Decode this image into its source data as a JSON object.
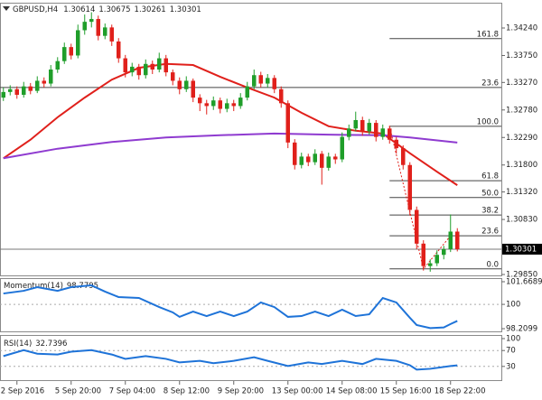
{
  "chart_data": [
    {
      "type": "candlestick",
      "title": "GBPUSD,H4",
      "ohlc": [
        [
          1.33,
          1.3318,
          1.3294,
          1.331
        ],
        [
          1.331,
          1.3322,
          1.3304,
          1.3315
        ],
        [
          1.3315,
          1.332,
          1.3298,
          1.3305
        ],
        [
          1.3305,
          1.3328,
          1.33,
          1.332
        ],
        [
          1.332,
          1.3326,
          1.3306,
          1.3312
        ],
        [
          1.3312,
          1.3338,
          1.3308,
          1.333
        ],
        [
          1.333,
          1.3336,
          1.3318,
          1.3325
        ],
        [
          1.3325,
          1.3358,
          1.332,
          1.335
        ],
        [
          1.335,
          1.3372,
          1.3344,
          1.3365
        ],
        [
          1.3365,
          1.3398,
          1.336,
          1.339
        ],
        [
          1.339,
          1.3396,
          1.3368,
          1.3375
        ],
        [
          1.3375,
          1.343,
          1.337,
          1.342
        ],
        [
          1.342,
          1.3448,
          1.3412,
          1.3435
        ],
        [
          1.3435,
          1.3452,
          1.3425,
          1.344
        ],
        [
          1.344,
          1.3446,
          1.3402,
          1.341
        ],
        [
          1.341,
          1.3432,
          1.3404,
          1.3425
        ],
        [
          1.3425,
          1.343,
          1.3392,
          1.34
        ],
        [
          1.34,
          1.3406,
          1.3362,
          1.337
        ],
        [
          1.337,
          1.3376,
          1.3336,
          1.3345
        ],
        [
          1.3345,
          1.3362,
          1.3338,
          1.3355
        ],
        [
          1.3355,
          1.336,
          1.3332,
          1.334
        ],
        [
          1.334,
          1.3368,
          1.3334,
          1.336
        ],
        [
          1.336,
          1.3366,
          1.3342,
          1.335
        ],
        [
          1.335,
          1.338,
          1.3345,
          1.337
        ],
        [
          1.337,
          1.3376,
          1.3338,
          1.3345
        ],
        [
          1.3345,
          1.335,
          1.3322,
          1.333
        ],
        [
          1.333,
          1.3336,
          1.3306,
          1.3315
        ],
        [
          1.3315,
          1.3338,
          1.331,
          1.333
        ],
        [
          1.333,
          1.3334,
          1.3292,
          1.33
        ],
        [
          1.33,
          1.3306,
          1.3276,
          1.329
        ],
        [
          1.329,
          1.3296,
          1.327,
          1.3285
        ],
        [
          1.3285,
          1.3302,
          1.3278,
          1.3295
        ],
        [
          1.3295,
          1.33,
          1.3272,
          1.328
        ],
        [
          1.328,
          1.3298,
          1.3274,
          1.329
        ],
        [
          1.329,
          1.3296,
          1.3276,
          1.3285
        ],
        [
          1.3285,
          1.3308,
          1.328,
          1.33
        ],
        [
          1.33,
          1.3328,
          1.3295,
          1.332
        ],
        [
          1.332,
          1.335,
          1.3315,
          1.334
        ],
        [
          1.334,
          1.3346,
          1.3318,
          1.3325
        ],
        [
          1.3325,
          1.3342,
          1.3318,
          1.3335
        ],
        [
          1.3335,
          1.334,
          1.3308,
          1.3315
        ],
        [
          1.3315,
          1.332,
          1.3282,
          1.329
        ],
        [
          1.329,
          1.3295,
          1.321,
          1.322
        ],
        [
          1.322,
          1.3226,
          1.3172,
          1.318
        ],
        [
          1.318,
          1.3202,
          1.3174,
          1.3195
        ],
        [
          1.3195,
          1.32,
          1.3178,
          1.3185
        ],
        [
          1.3185,
          1.3208,
          1.318,
          1.32
        ],
        [
          1.32,
          1.3205,
          1.3145,
          1.3175
        ],
        [
          1.3175,
          1.3202,
          1.317,
          1.3195
        ],
        [
          1.3195,
          1.32,
          1.3182,
          1.319
        ],
        [
          1.319,
          1.3238,
          1.3185,
          1.323
        ],
        [
          1.323,
          1.3252,
          1.3224,
          1.3245
        ],
        [
          1.3245,
          1.3275,
          1.324,
          1.326
        ],
        [
          1.326,
          1.3266,
          1.3232,
          1.324
        ],
        [
          1.324,
          1.3262,
          1.3234,
          1.3255
        ],
        [
          1.3255,
          1.326,
          1.3222,
          1.323
        ],
        [
          1.323,
          1.3252,
          1.3225,
          1.3245
        ],
        [
          1.3245,
          1.325,
          1.3218,
          1.3225
        ],
        [
          1.3225,
          1.323,
          1.32,
          1.321
        ],
        [
          1.321,
          1.3215,
          1.3172,
          1.318
        ],
        [
          1.318,
          1.3185,
          1.309,
          1.31
        ],
        [
          1.31,
          1.3106,
          1.303,
          1.304
        ],
        [
          1.304,
          1.3046,
          1.2992,
          1.3
        ],
        [
          1.3,
          1.3012,
          1.299,
          1.3005
        ],
        [
          1.3005,
          1.3028,
          1.3,
          1.302
        ],
        [
          1.302,
          1.3036,
          1.3012,
          1.303
        ],
        [
          1.303,
          1.3092,
          1.3025,
          1.30614
        ],
        [
          1.30614,
          1.30675,
          1.30261,
          1.30301
        ]
      ],
      "up_color": "#1f9e2a",
      "down_color": "#e0201b",
      "xlim": [
        -0.5,
        73.5
      ],
      "xticks": [
        {
          "value": 2,
          "label": "2 Sep 2016"
        },
        {
          "value": 10,
          "label": "5 Sep 20:00"
        },
        {
          "value": 18,
          "label": "7 Sep 04:00"
        },
        {
          "value": 26,
          "label": "8 Sep 12:00"
        },
        {
          "value": 34,
          "label": "9 Sep 20:00"
        },
        {
          "value": 42,
          "label": "13 Sep 00:00"
        },
        {
          "value": 50,
          "label": "14 Sep 08:00"
        },
        {
          "value": 58,
          "label": "15 Sep 16:00"
        },
        {
          "value": 66,
          "label": "18 Sep 22:00"
        }
      ],
      "ylim": [
        1.29834,
        1.34674
      ],
      "yticks": [
        {
          "value": 1.3424,
          "label": "1.34240"
        },
        {
          "value": 1.3375,
          "label": "1.33750"
        },
        {
          "value": 1.3327,
          "label": "1.33270"
        },
        {
          "value": 1.3278,
          "label": "1.32780"
        },
        {
          "value": 1.3229,
          "label": "1.32290"
        },
        {
          "value": 1.318,
          "label": "1.31800"
        },
        {
          "value": 1.3132,
          "label": "1.31320"
        },
        {
          "value": 1.3083,
          "label": "1.30830"
        },
        {
          "value": 1.2985,
          "label": "1.29850"
        }
      ],
      "grid": false,
      "lines": [
        {
          "color": "#e0201b",
          "x": [
            0,
            4,
            8,
            12,
            16,
            20,
            24,
            28,
            32,
            36,
            40,
            44,
            48,
            52,
            56,
            60,
            64,
            67
          ],
          "values": [
            1.3192,
            1.3225,
            1.3265,
            1.33,
            1.3332,
            1.3353,
            1.336,
            1.3358,
            1.3337,
            1.3318,
            1.33,
            1.3273,
            1.3249,
            1.3241,
            1.3236,
            1.3201,
            1.3168,
            1.3144
          ]
        },
        {
          "color": "#8f3bd0",
          "x": [
            0,
            8,
            16,
            24,
            32,
            40,
            48,
            56,
            60,
            67
          ],
          "values": [
            1.3192,
            1.3209,
            1.3221,
            1.3229,
            1.3233,
            1.3236,
            1.3234,
            1.3233,
            1.3229,
            1.322
          ]
        },
        {
          "color": "#e0201b",
          "dash": true,
          "x": [
            57,
            62,
            66
          ],
          "values": [
            1.3249,
            1.2995,
            1.3054
          ]
        }
      ],
      "levels": [
        {
          "label": "161.8",
          "value": 1.3405,
          "start": 57
        },
        {
          "label": "23.6",
          "value": 1.3318
        },
        {
          "label": "100.0",
          "value": 1.3249,
          "start": 57
        },
        {
          "label": "61.8",
          "value": 1.3152,
          "start": 57
        },
        {
          "label": "50.0",
          "value": 1.3122,
          "start": 57
        },
        {
          "label": "38.2",
          "value": 1.3091,
          "start": 57
        },
        {
          "label": "23.6",
          "value": 1.3054,
          "start": 57
        },
        {
          "label": "0.0",
          "value": 1.2995,
          "start": 57
        }
      ]
    },
    {
      "type": "line",
      "title": "Momentum(14)",
      "color": "#1e73d8",
      "x": [
        0,
        3,
        5,
        8,
        10,
        13,
        15,
        17,
        20,
        23,
        25,
        26,
        28,
        30,
        32,
        34,
        36,
        38,
        40,
        42,
        44,
        46,
        48,
        50,
        52,
        54,
        56,
        58,
        60,
        61,
        63,
        65,
        66,
        67
      ],
      "values": [
        100.8,
        101.0,
        101.27,
        101.0,
        101.27,
        101.4,
        100.94,
        100.54,
        100.47,
        99.8,
        99.41,
        99.08,
        99.47,
        99.14,
        99.47,
        99.14,
        99.47,
        100.14,
        99.8,
        99.08,
        99.14,
        99.47,
        99.14,
        99.61,
        99.14,
        99.27,
        100.47,
        100.14,
        99.01,
        98.48,
        98.25,
        98.3,
        98.55,
        98.7795
      ],
      "ylim": [
        98.2099,
        101.6689
      ],
      "yticks": [
        101.6689,
        100,
        98.2099
      ]
    },
    {
      "type": "line",
      "title": "RSI(14)",
      "color": "#1e73d8",
      "x": [
        0,
        3,
        5,
        8,
        10,
        13,
        16,
        18,
        21,
        24,
        26,
        29,
        31,
        34,
        37,
        39,
        42,
        45,
        47,
        50,
        53,
        55,
        58,
        60,
        61,
        63,
        66,
        67
      ],
      "values": [
        56,
        71,
        62,
        60,
        67,
        71,
        60,
        49,
        56,
        49,
        40,
        44,
        38,
        44,
        53,
        44,
        31,
        40,
        36,
        44,
        36,
        49,
        44,
        33,
        22,
        24,
        31,
        32.7396
      ],
      "ylim": [
        0,
        100
      ],
      "yticks": [
        100,
        70,
        30
      ]
    }
  ]
}
